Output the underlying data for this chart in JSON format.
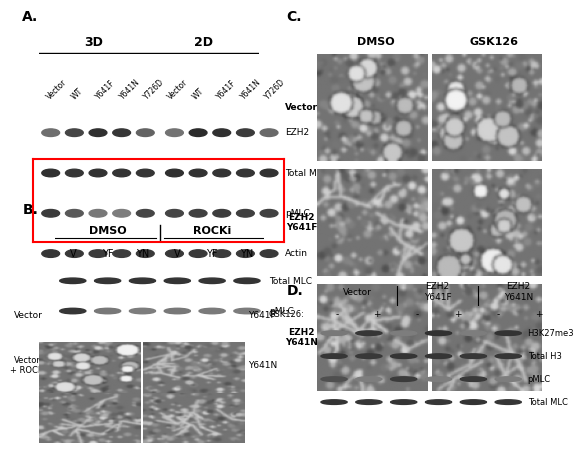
{
  "panel_A_label": "A.",
  "panel_B_label": "B.",
  "panel_C_label": "C.",
  "panel_D_label": "D.",
  "panel_A_3D_label": "3D",
  "panel_A_2D_label": "2D",
  "panel_A_col_labels_3D": [
    "Vector",
    "WT",
    "Y641F",
    "Y641N",
    "Y726D"
  ],
  "panel_A_col_labels_2D": [
    "Vector",
    "WT",
    "Y641F",
    "Y641N",
    "Y726D"
  ],
  "panel_A_row_labels": [
    "EZH2",
    "Total MLC",
    "pMLC",
    "Actin"
  ],
  "panel_B_title_left": "DMSO",
  "panel_B_title_right": "ROCKi",
  "panel_B_col_labels": [
    "V",
    "YF",
    "YN",
    "V",
    "YF",
    "YN"
  ],
  "panel_B_row_labels": [
    "Total MLC",
    "pMLC"
  ],
  "panel_B_left_labels": [
    "Vector",
    "Vector\n+ ROCKi"
  ],
  "panel_B_right_labels": [
    "Y641F",
    "Y641N"
  ],
  "panel_C_col_labels": [
    "DMSO",
    "GSK126"
  ],
  "panel_C_row_labels": [
    "Vector",
    "EZH2\nY641F",
    "EZH2\nY641N"
  ],
  "panel_D_col_labels_top": [
    "Vector",
    "EZH2\nY641F",
    "EZH2\nY641N"
  ],
  "panel_D_GSK_row": [
    "GSK126:",
    "-",
    "+",
    "-",
    "+",
    "-",
    "+"
  ],
  "panel_D_row_labels": [
    "H3K27me3",
    "Total H3",
    "pMLC",
    "Total MLC"
  ],
  "bg_color": "#ffffff",
  "text_color": "#000000",
  "red_box_color": "#ff0000",
  "band_color_dark": "#2a2a2a",
  "band_color_light": "#888888",
  "blot_bg": "#d8d8d8"
}
